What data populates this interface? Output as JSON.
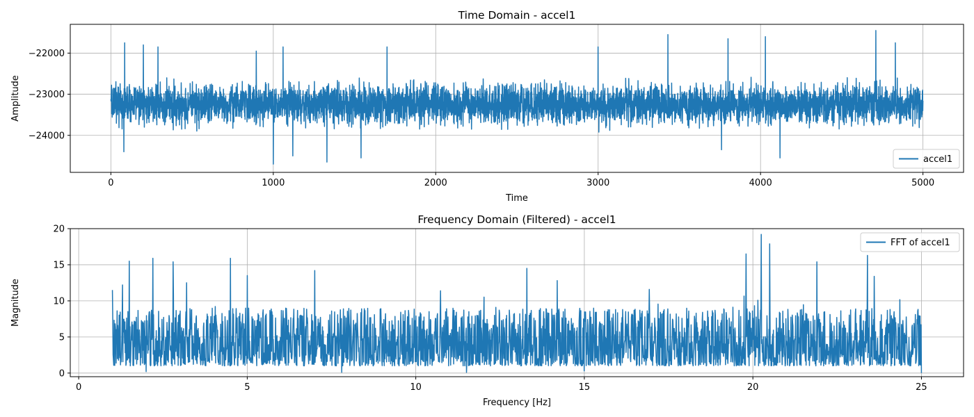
{
  "chart_data": [
    {
      "type": "line",
      "title": "Time Domain - accel1",
      "xlabel": "Time",
      "ylabel": "Amplitude",
      "xlim": [
        -250,
        5250
      ],
      "ylim": [
        -24900,
        -21300
      ],
      "xticks": [
        0,
        1000,
        2000,
        3000,
        4000,
        5000
      ],
      "xtick_labels": [
        "0",
        "1000",
        "2000",
        "3000",
        "4000",
        "5000"
      ],
      "yticks": [
        -22000,
        -23000,
        -24000
      ],
      "ytick_labels": [
        "−22000",
        "−23000",
        "−24000"
      ],
      "grid": true,
      "legend_position": "lower-right",
      "series": [
        {
          "name": "accel1",
          "color": "#1f77b4",
          "x_range": [
            0,
            5000
          ],
          "n_points": 5000,
          "baseline": -23250,
          "typical_range": [
            -23900,
            -22600
          ],
          "extremes": {
            "max": -21450,
            "min": -24700
          },
          "peaks": [
            {
              "x": 85,
              "y": -21750
            },
            {
              "x": 200,
              "y": -21800
            },
            {
              "x": 290,
              "y": -21850
            },
            {
              "x": 895,
              "y": -21950
            },
            {
              "x": 1060,
              "y": -21850
            },
            {
              "x": 1700,
              "y": -21850
            },
            {
              "x": 3000,
              "y": -21850
            },
            {
              "x": 3430,
              "y": -21550
            },
            {
              "x": 3800,
              "y": -21650
            },
            {
              "x": 4030,
              "y": -21600
            },
            {
              "x": 4710,
              "y": -21450
            },
            {
              "x": 4830,
              "y": -21750
            }
          ],
          "troughs": [
            {
              "x": 80,
              "y": -24400
            },
            {
              "x": 1000,
              "y": -24700
            },
            {
              "x": 1120,
              "y": -24500
            },
            {
              "x": 1330,
              "y": -24650
            },
            {
              "x": 1540,
              "y": -24550
            },
            {
              "x": 3760,
              "y": -24350
            },
            {
              "x": 4120,
              "y": -24550
            }
          ]
        }
      ]
    },
    {
      "type": "line",
      "title": "Frequency Domain (Filtered) - accel1",
      "xlabel": "Frequency [Hz]",
      "ylabel": "Magnitude",
      "xlim": [
        -0.25,
        26.25
      ],
      "ylim": [
        -0.5,
        20
      ],
      "xticks": [
        0,
        5,
        10,
        15,
        20,
        25
      ],
      "xtick_labels": [
        "0",
        "5",
        "10",
        "15",
        "20",
        "25"
      ],
      "yticks": [
        0,
        5,
        10,
        15,
        20
      ],
      "ytick_labels": [
        "0",
        "5",
        "10",
        "15",
        "20"
      ],
      "grid": true,
      "legend_position": "upper-right",
      "series": [
        {
          "name": "FFT of accel1",
          "color": "#1f77b4",
          "x_range": [
            1,
            25
          ],
          "n_points": 2400,
          "typical_range": [
            1,
            9
          ],
          "extremes": {
            "max": 19.2,
            "min": 0
          },
          "peaks": [
            {
              "x": 1.0,
              "y": 11.5
            },
            {
              "x": 1.3,
              "y": 12.2
            },
            {
              "x": 1.5,
              "y": 15.5
            },
            {
              "x": 2.2,
              "y": 15.9
            },
            {
              "x": 2.8,
              "y": 15.4
            },
            {
              "x": 3.2,
              "y": 12.5
            },
            {
              "x": 4.5,
              "y": 15.9
            },
            {
              "x": 5.0,
              "y": 13.5
            },
            {
              "x": 7.0,
              "y": 14.2
            },
            {
              "x": 13.3,
              "y": 14.5
            },
            {
              "x": 14.2,
              "y": 12.8
            },
            {
              "x": 19.8,
              "y": 16.5
            },
            {
              "x": 20.25,
              "y": 19.2
            },
            {
              "x": 20.5,
              "y": 17.9
            },
            {
              "x": 21.9,
              "y": 15.4
            },
            {
              "x": 23.4,
              "y": 16.3
            },
            {
              "x": 23.6,
              "y": 13.4
            }
          ],
          "troughs": [
            {
              "x": 2.0,
              "y": 0.2
            },
            {
              "x": 7.8,
              "y": 0.1
            },
            {
              "x": 11.5,
              "y": 0.1
            },
            {
              "x": 15.0,
              "y": 0.3
            },
            {
              "x": 25.0,
              "y": 0.0
            }
          ]
        }
      ]
    }
  ]
}
